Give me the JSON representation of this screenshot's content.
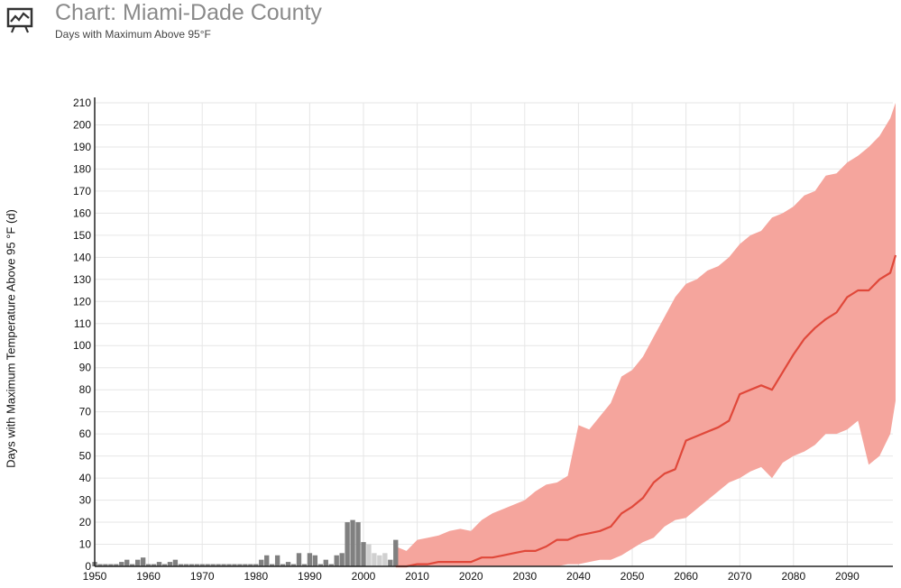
{
  "header": {
    "title": "Chart: Miami-Dade County",
    "subtitle": "Days with Maximum Above 95°F",
    "icon": "chart-presentation-icon"
  },
  "colors": {
    "observed_bar": "#808080",
    "observed_bar_light": "#d0d0d0",
    "projection_line": "#e0483a",
    "projection_band": "#f5a59d",
    "grid": "#e6e6e6",
    "axis": "#222222"
  },
  "chart_data": {
    "type": "bar",
    "ylabel": "Days with Maximum Temperature Above 95 °F (d)",
    "xlabel": "",
    "xlim": [
      1950,
      2100
    ],
    "ylim": [
      0,
      210
    ],
    "x_ticks": [
      1950,
      1960,
      1970,
      1980,
      1990,
      2000,
      2010,
      2020,
      2030,
      2040,
      2050,
      2060,
      2070,
      2080,
      2090
    ],
    "y_ticks": [
      0,
      10,
      20,
      30,
      40,
      50,
      60,
      70,
      80,
      90,
      100,
      110,
      120,
      130,
      140,
      150,
      160,
      170,
      180,
      190,
      200,
      210
    ],
    "grid": true,
    "legend": "none",
    "series": [
      {
        "type": "bar",
        "years": [
          1950,
          1951,
          1952,
          1953,
          1954,
          1955,
          1956,
          1957,
          1958,
          1959,
          1960,
          1961,
          1962,
          1963,
          1964,
          1965,
          1966,
          1967,
          1968,
          1969,
          1970,
          1971,
          1972,
          1973,
          1974,
          1975,
          1976,
          1977,
          1978,
          1979,
          1980,
          1981,
          1982,
          1983,
          1984,
          1985,
          1986,
          1987,
          1988,
          1989,
          1990,
          1991,
          1992,
          1993,
          1994,
          1995,
          1996,
          1997,
          1998,
          1999,
          2000,
          2001,
          2002,
          2003,
          2004,
          2005,
          2006
        ],
        "values": [
          2,
          1,
          1,
          1,
          1,
          2,
          3,
          1,
          3,
          4,
          1,
          1,
          2,
          1,
          2,
          3,
          1,
          1,
          1,
          1,
          1,
          1,
          1,
          1,
          1,
          1,
          1,
          1,
          1,
          1,
          1,
          3,
          5,
          1,
          5,
          1,
          2,
          1,
          6,
          1,
          6,
          5,
          1,
          3,
          1,
          5,
          6,
          20,
          21,
          20,
          11,
          0,
          0,
          0,
          0,
          3,
          12
        ],
        "light_values": [
          0,
          0,
          0,
          0,
          0,
          0,
          0,
          0,
          0,
          0,
          0,
          0,
          0,
          0,
          0,
          0,
          0,
          0,
          0,
          0,
          0,
          0,
          0,
          0,
          0,
          0,
          0,
          0,
          0,
          0,
          0,
          0,
          0,
          0,
          0,
          0,
          0,
          0,
          0,
          0,
          0,
          0,
          0,
          0,
          0,
          0,
          0,
          0,
          0,
          0,
          0,
          10,
          6,
          5,
          6,
          0,
          0
        ]
      },
      {
        "type": "line",
        "years": [
          2006,
          2008,
          2010,
          2012,
          2014,
          2016,
          2018,
          2020,
          2022,
          2024,
          2026,
          2028,
          2030,
          2032,
          2034,
          2036,
          2038,
          2040,
          2042,
          2044,
          2046,
          2048,
          2050,
          2052,
          2054,
          2056,
          2058,
          2060,
          2062,
          2064,
          2066,
          2068,
          2070,
          2072,
          2074,
          2076,
          2078,
          2080,
          2082,
          2084,
          2086,
          2088,
          2090,
          2092,
          2094,
          2096,
          2098,
          2099
        ],
        "median": [
          0,
          0,
          1,
          1,
          2,
          2,
          2,
          2,
          4,
          4,
          5,
          6,
          7,
          7,
          9,
          12,
          12,
          14,
          15,
          16,
          18,
          24,
          27,
          31,
          38,
          42,
          44,
          57,
          59,
          61,
          63,
          66,
          78,
          80,
          82,
          80,
          88,
          96,
          103,
          108,
          112,
          115,
          122,
          125,
          125,
          130,
          133,
          141
        ],
        "low": [
          0,
          0,
          0,
          0,
          0,
          0,
          0,
          0,
          0,
          0,
          0,
          0,
          0,
          0,
          0,
          0,
          1,
          1,
          2,
          3,
          3,
          5,
          8,
          11,
          13,
          18,
          21,
          22,
          26,
          30,
          34,
          38,
          40,
          43,
          45,
          40,
          47,
          50,
          52,
          55,
          60,
          60,
          62,
          66,
          46,
          50,
          60,
          75
        ],
        "high": [
          9,
          7,
          12,
          13,
          14,
          16,
          17,
          16,
          21,
          24,
          26,
          28,
          30,
          34,
          37,
          38,
          41,
          64,
          62,
          68,
          74,
          86,
          89,
          95,
          104,
          113,
          122,
          128,
          130,
          134,
          136,
          140,
          146,
          150,
          152,
          158,
          160,
          163,
          168,
          170,
          177,
          178,
          183,
          186,
          190,
          195,
          203,
          210
        ]
      }
    ]
  }
}
